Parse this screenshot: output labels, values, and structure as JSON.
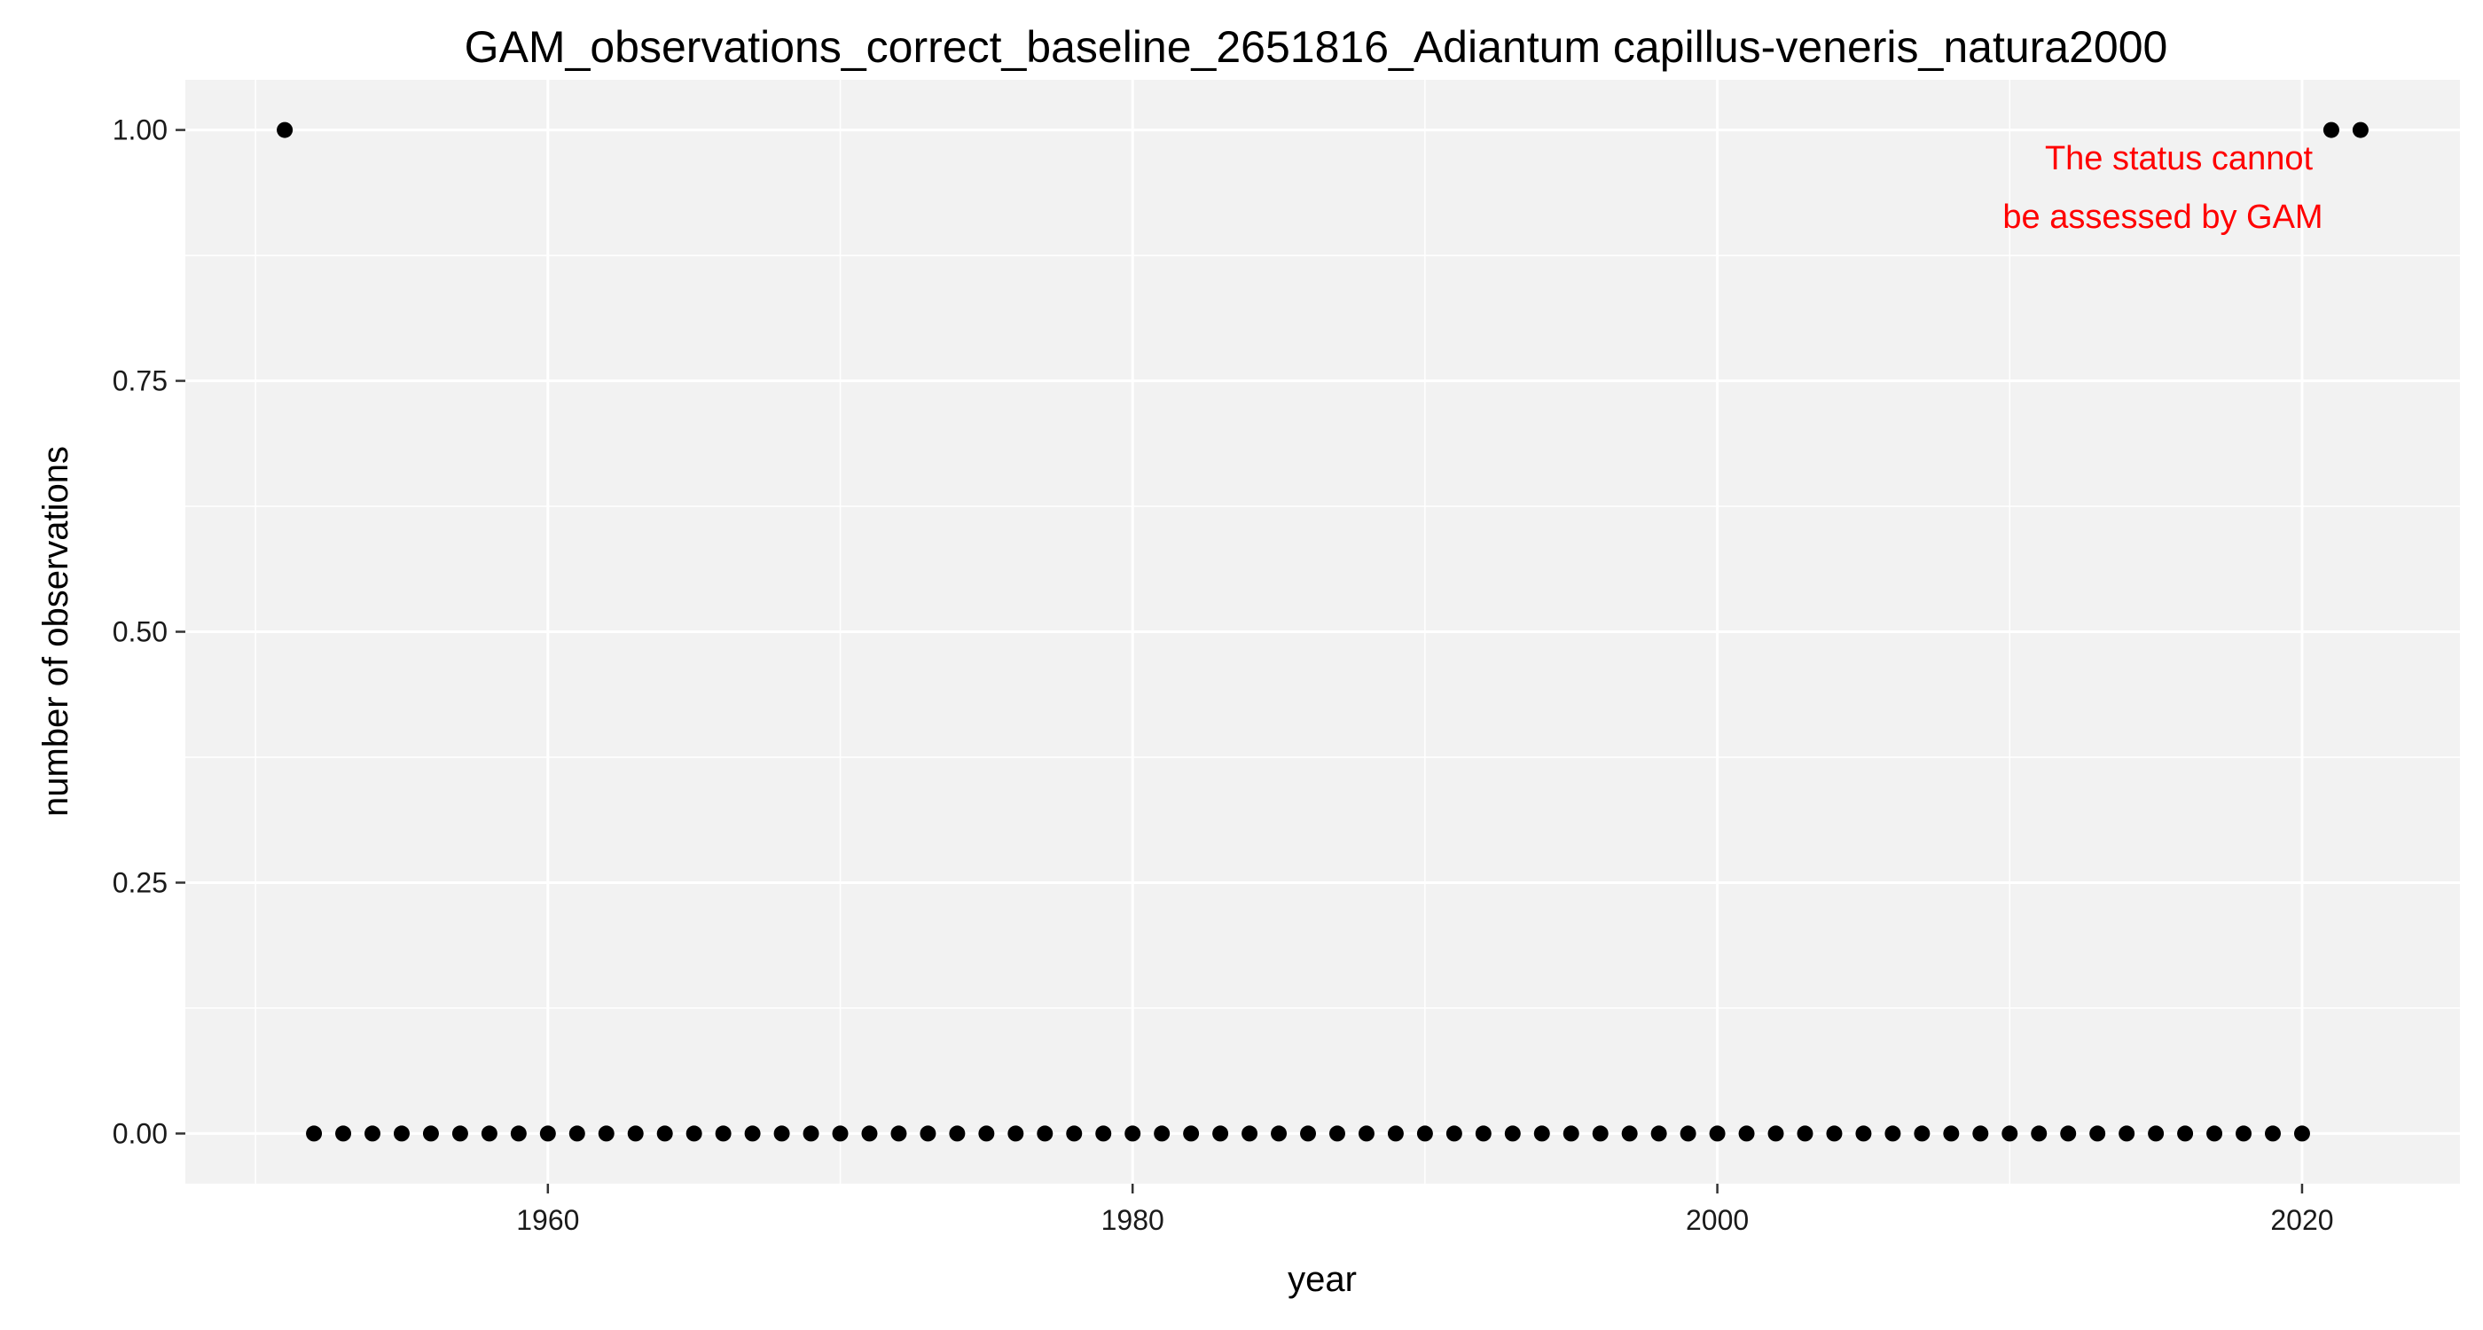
{
  "chart_data": {
    "type": "scatter",
    "title": "GAM_observations_correct_baseline_2651816_Adiantum capillus-veneris_natura2000",
    "xlabel": "year",
    "ylabel": "number of observations",
    "xlim": [
      1947.6,
      2025.4
    ],
    "ylim": [
      -0.05,
      1.05
    ],
    "x_ticks": [
      1960,
      1980,
      2000,
      2020
    ],
    "x_minor_ticks": [
      1950,
      1970,
      1990,
      2010
    ],
    "y_ticks": [
      0.0,
      0.25,
      0.5,
      0.75,
      1.0
    ],
    "y_tick_labels": [
      "0.00",
      "0.25",
      "0.50",
      "0.75",
      "1.00"
    ],
    "grid": true,
    "background": "#f2f2f2",
    "grid_color": "#ffffff",
    "point_color": "#000000",
    "annotation": {
      "lines": [
        "The status cannot",
        "be assessed by GAM"
      ],
      "color": "#ff0000",
      "placement": "top-right"
    },
    "points": {
      "x": [
        1951,
        1952,
        1953,
        1954,
        1955,
        1956,
        1957,
        1958,
        1959,
        1960,
        1961,
        1962,
        1963,
        1964,
        1965,
        1966,
        1967,
        1968,
        1969,
        1970,
        1971,
        1972,
        1973,
        1974,
        1975,
        1976,
        1977,
        1978,
        1979,
        1980,
        1981,
        1982,
        1983,
        1984,
        1985,
        1986,
        1987,
        1988,
        1989,
        1990,
        1991,
        1992,
        1993,
        1994,
        1995,
        1996,
        1997,
        1998,
        1999,
        2000,
        2001,
        2002,
        2003,
        2004,
        2005,
        2006,
        2007,
        2008,
        2009,
        2010,
        2011,
        2012,
        2013,
        2014,
        2015,
        2016,
        2017,
        2018,
        2019,
        2020,
        2021,
        2022
      ],
      "y": [
        1,
        0,
        0,
        0,
        0,
        0,
        0,
        0,
        0,
        0,
        0,
        0,
        0,
        0,
        0,
        0,
        0,
        0,
        0,
        0,
        0,
        0,
        0,
        0,
        0,
        0,
        0,
        0,
        0,
        0,
        0,
        0,
        0,
        0,
        0,
        0,
        0,
        0,
        0,
        0,
        0,
        0,
        0,
        0,
        0,
        0,
        0,
        0,
        0,
        0,
        0,
        0,
        0,
        0,
        0,
        0,
        0,
        0,
        0,
        0,
        0,
        0,
        0,
        0,
        0,
        0,
        0,
        0,
        0,
        0,
        1,
        1
      ]
    }
  }
}
